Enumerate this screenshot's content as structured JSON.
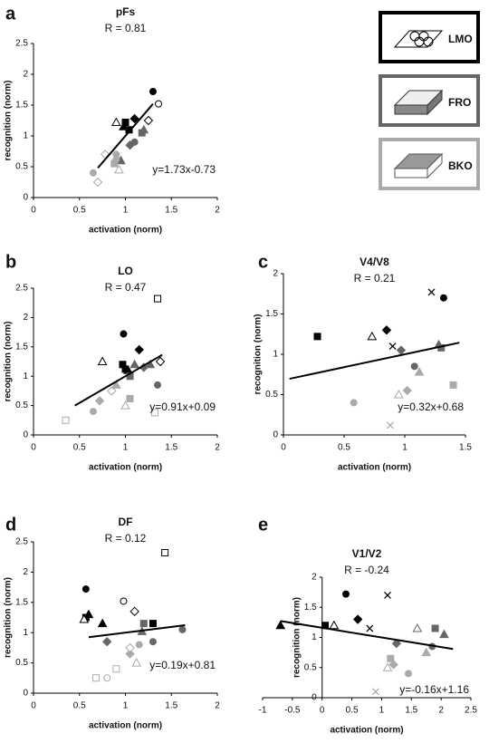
{
  "chart_data": [
    {
      "type": "scatter",
      "panel_label": "a",
      "title": "pFs",
      "r_label": "R = 0.81",
      "x_label": "activation (norm)",
      "y_label": "recognition (norm)",
      "xlim": [
        0,
        2
      ],
      "xticks": [
        0,
        0.5,
        1,
        1.5,
        2
      ],
      "ylim": [
        0,
        2.5
      ],
      "yticks": [
        0,
        0.5,
        1,
        1.5,
        2,
        2.5
      ],
      "fit": {
        "slope": 1.73,
        "intercept": -0.73,
        "x": [
          0.7,
          1.3
        ],
        "label": "y=1.73x-0.73"
      },
      "series": [
        {
          "name": "LMO",
          "color": "#000000",
          "x": [
            1.3,
            1.36,
            0.98,
            0.9,
            1.1,
            1.0,
            1.04,
            1.25
          ],
          "values": [
            1.72,
            1.52,
            1.15,
            1.22,
            1.28,
            1.22,
            1.1,
            1.25
          ],
          "markers": [
            "circle",
            "circle-open",
            "triangle",
            "triangle-open",
            "diamond",
            "square",
            "square",
            "diamond-open"
          ]
        },
        {
          "name": "FRO",
          "color": "#666666",
          "x": [
            1.1,
            1.05,
            1.2,
            1.18,
            0.95
          ],
          "values": [
            0.9,
            0.85,
            1.1,
            1.05,
            0.6
          ],
          "markers": [
            "circle",
            "diamond",
            "triangle",
            "square",
            "triangle"
          ]
        },
        {
          "name": "BKO",
          "color": "#aaaaaa",
          "x": [
            0.65,
            0.7,
            0.78,
            0.9,
            0.88,
            0.93,
            0.9
          ],
          "values": [
            0.4,
            0.25,
            0.7,
            0.7,
            0.55,
            0.45,
            0.62
          ],
          "markers": [
            "circle",
            "diamond-open",
            "diamond-open",
            "circle",
            "square",
            "triangle-open",
            "circle"
          ]
        }
      ]
    },
    {
      "type": "scatter",
      "panel_label": "b",
      "title": "LO",
      "r_label": "R = 0.47",
      "x_label": "activation (norm)",
      "y_label": "recognition (norm)",
      "xlim": [
        0,
        2
      ],
      "xticks": [
        0,
        0.5,
        1,
        1.5,
        2
      ],
      "ylim": [
        0,
        2.5
      ],
      "yticks": [
        0,
        0.5,
        1,
        1.5,
        2,
        2.5
      ],
      "fit": {
        "slope": 0.91,
        "intercept": 0.09,
        "x": [
          0.45,
          1.4
        ],
        "label": "y=0.91x+0.09"
      },
      "series": [
        {
          "color": "#000000",
          "x": [
            0.98,
            1.35,
            0.75,
            0.97,
            1.03,
            1.15,
            1.38,
            1.0
          ],
          "values": [
            1.72,
            2.32,
            1.25,
            1.2,
            1.1,
            1.45,
            1.25,
            1.12
          ],
          "markers": [
            "circle",
            "square-open",
            "triangle-open",
            "square",
            "triangle",
            "diamond",
            "diamond-open",
            "square"
          ]
        },
        {
          "color": "#666666",
          "x": [
            1.35,
            1.2,
            1.1,
            1.05,
            1.27
          ],
          "values": [
            0.85,
            1.15,
            1.2,
            1.0,
            1.2
          ],
          "markers": [
            "circle",
            "diamond",
            "triangle",
            "square",
            "triangle"
          ]
        },
        {
          "color": "#aaaaaa",
          "x": [
            0.35,
            0.65,
            0.72,
            0.85,
            1.05,
            1.0,
            1.32,
            0.9
          ],
          "values": [
            0.25,
            0.4,
            0.58,
            0.75,
            0.62,
            0.5,
            0.38,
            0.85
          ],
          "markers": [
            "square-open",
            "circle",
            "diamond",
            "diamond-open",
            "square",
            "triangle-open",
            "square-open",
            "triangle"
          ]
        }
      ]
    },
    {
      "type": "scatter",
      "panel_label": "c",
      "title": "V4/V8",
      "r_label": "R = 0.21",
      "x_label": "activation (norm)",
      "y_label": "recognition (norm)",
      "xlim": [
        0,
        1.5
      ],
      "xticks": [
        0,
        0.5,
        1,
        1.5
      ],
      "ylim": [
        0,
        2
      ],
      "yticks": [
        0,
        0.5,
        1,
        1.5,
        2
      ],
      "fit": {
        "slope": 0.32,
        "intercept": 0.68,
        "x": [
          0.05,
          1.45
        ],
        "label": "y=0.32x+0.68"
      },
      "series": [
        {
          "color": "#000000",
          "x": [
            0.28,
            0.73,
            0.85,
            1.22,
            1.32,
            0.9
          ],
          "values": [
            1.22,
            1.22,
            1.3,
            1.77,
            1.7,
            1.1
          ],
          "markers": [
            "square",
            "triangle-open",
            "diamond",
            "cross",
            "circle",
            "cross"
          ]
        },
        {
          "color": "#666666",
          "x": [
            0.97,
            1.08,
            1.28,
            1.3
          ],
          "values": [
            1.05,
            0.85,
            1.12,
            1.08
          ],
          "markers": [
            "diamond",
            "circle",
            "triangle",
            "square"
          ]
        },
        {
          "color": "#aaaaaa",
          "x": [
            0.58,
            0.95,
            0.88,
            1.12,
            1.4,
            1.02
          ],
          "values": [
            0.4,
            0.5,
            0.12,
            0.78,
            0.62,
            0.55
          ],
          "markers": [
            "circle",
            "triangle-open",
            "cross",
            "triangle",
            "square",
            "diamond"
          ]
        }
      ]
    },
    {
      "type": "scatter",
      "panel_label": "d",
      "title": "DF",
      "r_label": "R = 0.12",
      "x_label": "activation (norm)",
      "y_label": "recognition (norm)",
      "xlim": [
        0,
        2
      ],
      "xticks": [
        0,
        0.5,
        1,
        1.5,
        2
      ],
      "ylim": [
        0,
        2.5
      ],
      "yticks": [
        0,
        0.5,
        1,
        1.5,
        2,
        2.5
      ],
      "fit": {
        "slope": 0.19,
        "intercept": 0.81,
        "x": [
          0.6,
          1.65
        ],
        "label": "y=0.19x+0.81"
      },
      "series": [
        {
          "color": "#000000",
          "x": [
            0.57,
            0.57,
            0.6,
            0.75,
            0.98,
            1.1,
            1.43,
            0.55,
            1.3
          ],
          "values": [
            1.72,
            1.25,
            1.3,
            1.15,
            1.52,
            1.35,
            2.32,
            1.22,
            1.15
          ],
          "markers": [
            "circle",
            "square",
            "triangle",
            "triangle",
            "circle-open",
            "diamond-open",
            "square-open",
            "triangle-open",
            "square"
          ]
        },
        {
          "color": "#666666",
          "x": [
            0.8,
            1.3,
            1.2,
            1.62,
            1.18
          ],
          "values": [
            0.85,
            0.85,
            1.15,
            1.05,
            1.02
          ],
          "markers": [
            "diamond",
            "circle",
            "square",
            "circle",
            "triangle"
          ]
        },
        {
          "color": "#aaaaaa",
          "x": [
            0.68,
            0.8,
            0.9,
            1.05,
            1.12,
            1.15,
            1.05
          ],
          "values": [
            0.25,
            0.25,
            0.4,
            0.65,
            0.5,
            0.8,
            0.75
          ],
          "markers": [
            "square-open",
            "circle-open",
            "square-open",
            "diamond",
            "triangle-open",
            "circle",
            "diamond-open"
          ]
        }
      ]
    },
    {
      "type": "scatter",
      "panel_label": "e",
      "title": "V1/V2",
      "r_label": "R = -0.24",
      "x_label": "activation (norm)",
      "y_label": "recognition (norm)",
      "xlim": [
        -1,
        2.5
      ],
      "xticks": [
        -1,
        -0.5,
        0,
        0.5,
        1,
        1.5,
        2,
        2.5
      ],
      "ylim": [
        0,
        2
      ],
      "yticks": [
        0,
        0.5,
        1,
        1.5,
        2
      ],
      "fit": {
        "slope": -0.16,
        "intercept": 1.16,
        "x": [
          -0.7,
          2.2
        ],
        "label": "y=-0.16x+1.16"
      },
      "series": [
        {
          "color": "#000000",
          "x": [
            -0.7,
            0.05,
            0.2,
            0.4,
            0.6,
            1.1,
            0.8
          ],
          "values": [
            1.2,
            1.2,
            1.2,
            1.72,
            1.3,
            1.7,
            1.15
          ],
          "markers": [
            "triangle",
            "square",
            "triangle-open",
            "circle",
            "diamond",
            "cross",
            "cross"
          ]
        },
        {
          "color": "#666666",
          "x": [
            1.6,
            1.9,
            2.05,
            1.25,
            1.85
          ],
          "values": [
            1.15,
            1.15,
            1.05,
            0.9,
            0.85
          ],
          "markers": [
            "triangle-open",
            "square",
            "triangle",
            "diamond",
            "circle"
          ]
        },
        {
          "color": "#aaaaaa",
          "x": [
            1.15,
            1.1,
            0.9,
            1.75,
            1.45,
            1.2
          ],
          "values": [
            0.65,
            0.5,
            0.1,
            0.75,
            0.4,
            0.55
          ],
          "markers": [
            "square",
            "triangle-open",
            "cross",
            "triangle",
            "circle",
            "diamond"
          ]
        }
      ]
    }
  ]
}
